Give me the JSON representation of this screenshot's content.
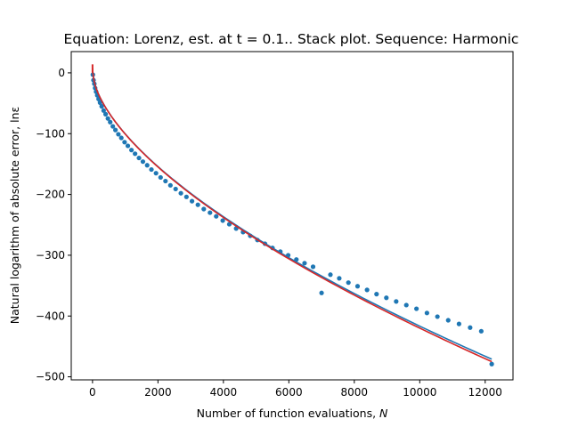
{
  "chart_data": {
    "type": "scatter",
    "title": "Equation: Lorenz, est. at t = 0.1.. Stack plot. Sequence: Harmonic",
    "xlabel": "Number of function evaluations, ",
    "xlabel_var": "N",
    "ylabel": "Natural logarithm of absolute error, lnε",
    "xlim": [
      -650,
      12850
    ],
    "ylim": [
      -505,
      35
    ],
    "xticks": [
      0,
      2000,
      4000,
      6000,
      8000,
      10000,
      12000
    ],
    "xtick_labels": [
      "0",
      "2000",
      "4000",
      "6000",
      "8000",
      "10000",
      "12000"
    ],
    "yticks": [
      0,
      -100,
      -200,
      -300,
      -400,
      -500
    ],
    "ytick_labels": [
      "0",
      "−100",
      "−200",
      "−300",
      "−400",
      "−500"
    ],
    "grid": false,
    "colors": {
      "points": "#1f77b4",
      "fit_blue": "#1f77b4",
      "fit_red": "#d62728"
    },
    "series": [
      {
        "kind": "points",
        "x": [
          10,
          30,
          55,
          80,
          110,
          145,
          185,
          230,
          280,
          340,
          400,
          470,
          540,
          620,
          700,
          790,
          880,
          980,
          1080,
          1190,
          1300,
          1420,
          1540,
          1670,
          1800,
          1940,
          2080,
          2230,
          2380,
          2540,
          2700,
          2870,
          3040,
          3220,
          3400,
          3590,
          3780,
          3980,
          4180,
          4390,
          4600,
          4820,
          5040,
          5270,
          5500,
          5740,
          5980,
          6230,
          6480,
          6740,
          7000,
          7270,
          7540,
          7820,
          8100,
          8390,
          8680,
          8980,
          9280,
          9590,
          9900,
          10220,
          10540,
          10870,
          11200,
          11540,
          11880,
          12200
        ],
        "y": [
          -3,
          -12,
          -18,
          -25,
          -31,
          -37,
          -43,
          -49,
          -55,
          -62,
          -68,
          -75,
          -81,
          -88,
          -94,
          -101,
          -107,
          -114,
          -120,
          -127,
          -133,
          -140,
          -146,
          -152,
          -159,
          -165,
          -172,
          -178,
          -185,
          -191,
          -198,
          -204,
          -211,
          -217,
          -224,
          -230,
          -236,
          -243,
          -249,
          -256,
          -262,
          -268,
          -275,
          -281,
          -288,
          -294,
          -300,
          -307,
          -313,
          -319,
          -362,
          -332,
          -338,
          -345,
          -351,
          -357,
          -364,
          -370,
          -376,
          -382,
          -388,
          -395,
          -401,
          -407,
          -413,
          -419,
          -425,
          -479
        ]
      }
    ]
  }
}
